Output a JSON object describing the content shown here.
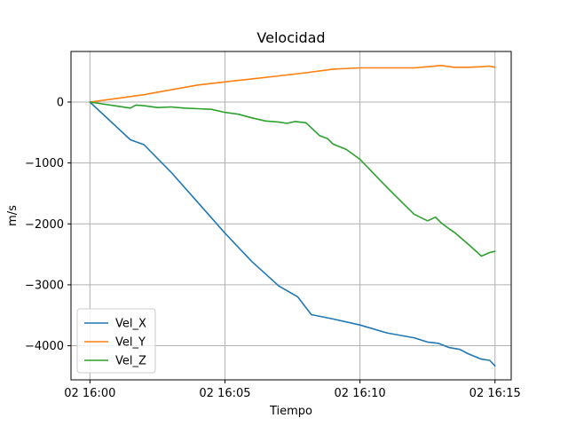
{
  "chart_data": {
    "type": "line",
    "title": "Velocidad",
    "xlabel": "Tiempo",
    "ylabel": "m/s",
    "x_ticks": [
      "02 16:00",
      "02 16:05",
      "02 16:10",
      "02 16:15"
    ],
    "y_ticks": [
      "0",
      "−1000",
      "−2000",
      "−3000",
      "−4000"
    ],
    "xlim": [
      "02 15:59.3",
      "02 16:15.6"
    ],
    "ylim": [
      -4560,
      830
    ],
    "grid": true,
    "legend_position": "lower-left",
    "series": [
      {
        "name": "Vel_X",
        "color": "#1f77b4",
        "x": [
          0,
          1.5,
          2,
          3,
          4,
          5,
          6,
          7,
          7.7,
          8.2,
          9,
          10,
          11,
          12,
          12.5,
          12.9,
          13.3,
          13.7,
          14,
          14.5,
          14.8,
          15
        ],
        "y": [
          0,
          -620,
          -700,
          -1150,
          -1650,
          -2150,
          -2620,
          -3020,
          -3200,
          -3490,
          -3560,
          -3660,
          -3790,
          -3870,
          -3940,
          -3960,
          -4030,
          -4060,
          -4130,
          -4220,
          -4240,
          -4330
        ]
      },
      {
        "name": "Vel_Y",
        "color": "#ff7f0e",
        "x": [
          0,
          1,
          2,
          3,
          4,
          5,
          6,
          7,
          8,
          9,
          10,
          11,
          12,
          12.5,
          13,
          13.5,
          14,
          14.5,
          14.8,
          15
        ],
        "y": [
          0,
          60,
          120,
          200,
          280,
          330,
          380,
          430,
          480,
          540,
          560,
          560,
          560,
          580,
          600,
          570,
          570,
          580,
          590,
          570
        ]
      },
      {
        "name": "Vel_Z",
        "color": "#2ca02c",
        "x": [
          0,
          1.5,
          1.7,
          2,
          2.5,
          3,
          3.5,
          4,
          4.5,
          5,
          5.5,
          6,
          6.5,
          7,
          7.3,
          7.6,
          8,
          8.5,
          8.8,
          9,
          9.5,
          10,
          10.5,
          11,
          11.5,
          12,
          12.5,
          12.8,
          13,
          13.3,
          13.5,
          14,
          14.5,
          14.8,
          15
        ],
        "y": [
          0,
          -100,
          -50,
          -60,
          -90,
          -80,
          -100,
          -110,
          -120,
          -170,
          -200,
          -260,
          -310,
          -330,
          -350,
          -320,
          -340,
          -550,
          -600,
          -690,
          -780,
          -940,
          -1170,
          -1400,
          -1620,
          -1840,
          -1950,
          -1890,
          -1980,
          -2080,
          -2140,
          -2330,
          -2530,
          -2470,
          -2450
        ]
      }
    ]
  }
}
